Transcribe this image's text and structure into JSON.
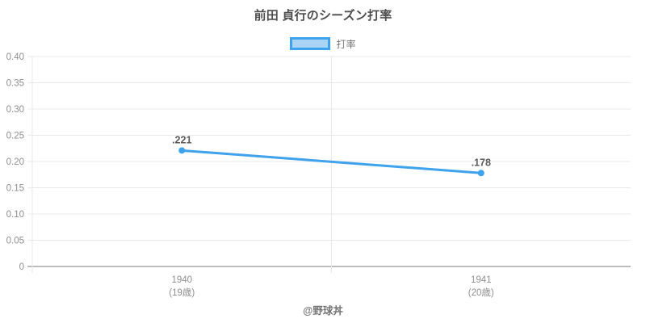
{
  "header": {
    "title": "前田 貞行のシーズン打率"
  },
  "legend": {
    "label": "打率"
  },
  "footer": {
    "text": "@野球丼"
  },
  "chart_data": {
    "type": "line",
    "title": "前田 貞行のシーズン打率",
    "series": [
      {
        "name": "打率",
        "values": [
          0.221,
          0.178
        ]
      }
    ],
    "categories": [
      "1940",
      "1941"
    ],
    "category_sublabels": [
      "(19歳)",
      "(20歳)"
    ],
    "point_labels": [
      ".221",
      ".178"
    ],
    "xlabel": "",
    "ylabel": "",
    "ylim": [
      0,
      0.4
    ],
    "yticks": [
      {
        "value": 0.0,
        "label": "0"
      },
      {
        "value": 0.05,
        "label": "0.05"
      },
      {
        "value": 0.1,
        "label": "0.10"
      },
      {
        "value": 0.15,
        "label": "0.15"
      },
      {
        "value": 0.2,
        "label": "0.20"
      },
      {
        "value": 0.25,
        "label": "0.25"
      },
      {
        "value": 0.3,
        "label": "0.30"
      },
      {
        "value": 0.35,
        "label": "0.35"
      },
      {
        "value": 0.4,
        "label": "0.40"
      }
    ],
    "grid": true,
    "legend_position": "top",
    "colors": {
      "line": "#3FA2EC",
      "legend_fill": "#A9D4F5",
      "grid": "#E8E8E8",
      "zero_line": "#BDBDBD",
      "tick_text": "#8E8E8E",
      "point_label": "#595959",
      "title_text": "#4D4D4D",
      "legend_text": "#737373",
      "footer_text": "#757575"
    }
  }
}
